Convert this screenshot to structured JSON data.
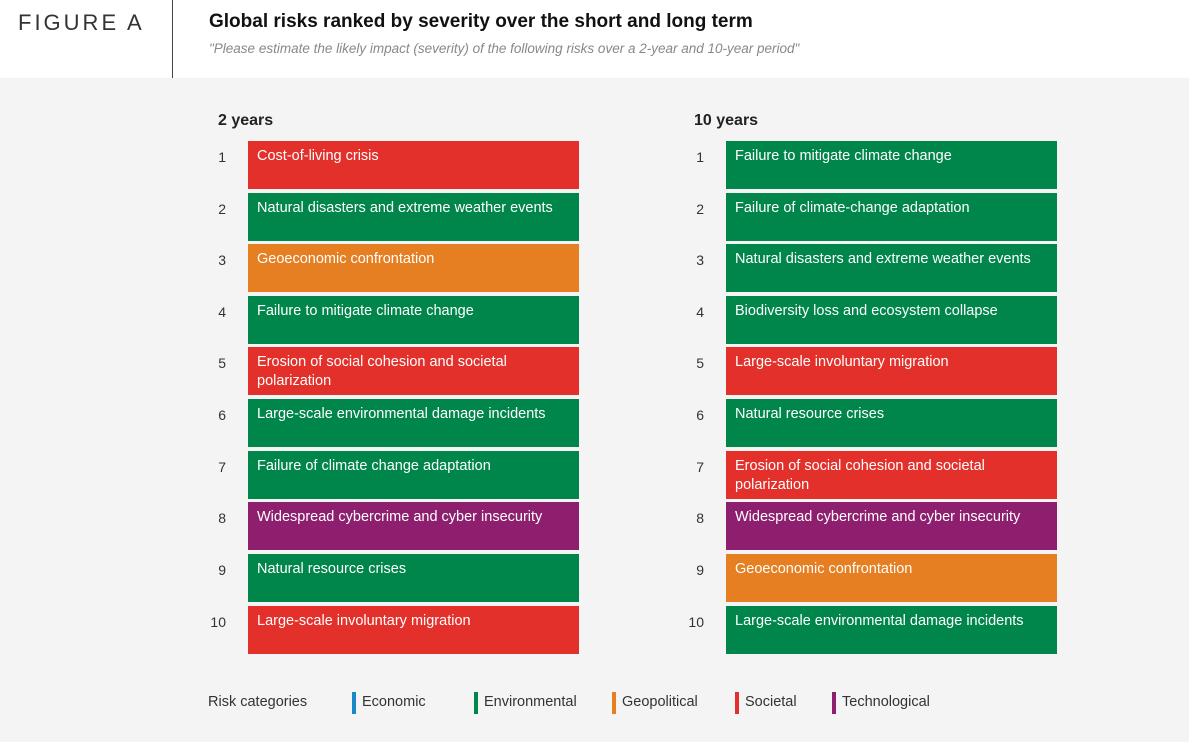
{
  "header": {
    "figure_label": "FIGURE A",
    "title": "Global risks ranked by severity over the short and long term",
    "subtitle": "\"Please estimate the likely impact (severity) of the following risks over a 2-year and 10-year period\""
  },
  "colors": {
    "Economic": "#1a87c6",
    "Environmental": "#00854a",
    "Geopolitical": "#e67e22",
    "Societal": "#e3302a",
    "Technological": "#8e1f6e"
  },
  "columns": [
    {
      "title": "2 years",
      "items": [
        {
          "rank": "1",
          "label": "Cost-of-living crisis",
          "category": "Societal"
        },
        {
          "rank": "2",
          "label": "Natural disasters and extreme weather events",
          "category": "Environmental"
        },
        {
          "rank": "3",
          "label": "Geoeconomic confrontation",
          "category": "Geopolitical"
        },
        {
          "rank": "4",
          "label": "Failure to mitigate climate change",
          "category": "Environmental"
        },
        {
          "rank": "5",
          "label": "Erosion of social cohesion and societal polarization",
          "category": "Societal"
        },
        {
          "rank": "6",
          "label": "Large-scale environmental damage incidents",
          "category": "Environmental"
        },
        {
          "rank": "7",
          "label": "Failure of climate change adaptation",
          "category": "Environmental"
        },
        {
          "rank": "8",
          "label": "Widespread cybercrime and cyber insecurity",
          "category": "Technological"
        },
        {
          "rank": "9",
          "label": "Natural resource crises",
          "category": "Environmental"
        },
        {
          "rank": "10",
          "label": "Large-scale involuntary migration",
          "category": "Societal"
        }
      ]
    },
    {
      "title": "10 years",
      "items": [
        {
          "rank": "1",
          "label": "Failure to mitigate climate change",
          "category": "Environmental"
        },
        {
          "rank": "2",
          "label": "Failure of climate-change adaptation",
          "category": "Environmental"
        },
        {
          "rank": "3",
          "label": "Natural disasters and extreme weather events",
          "category": "Environmental"
        },
        {
          "rank": "4",
          "label": "Biodiversity loss and ecosystem collapse",
          "category": "Environmental"
        },
        {
          "rank": "5",
          "label": "Large-scale involuntary migration",
          "category": "Societal"
        },
        {
          "rank": "6",
          "label": "Natural resource crises",
          "category": "Environmental"
        },
        {
          "rank": "7",
          "label": "Erosion of social cohesion and societal polarization",
          "category": "Societal"
        },
        {
          "rank": "8",
          "label": "Widespread cybercrime and cyber insecurity",
          "category": "Technological"
        },
        {
          "rank": "9",
          "label": "Geoeconomic confrontation",
          "category": "Geopolitical"
        },
        {
          "rank": "10",
          "label": "Large-scale environmental damage incidents",
          "category": "Environmental"
        }
      ]
    }
  ],
  "legend": {
    "title": "Risk categories",
    "items": [
      "Economic",
      "Environmental",
      "Geopolitical",
      "Societal",
      "Technological"
    ]
  }
}
